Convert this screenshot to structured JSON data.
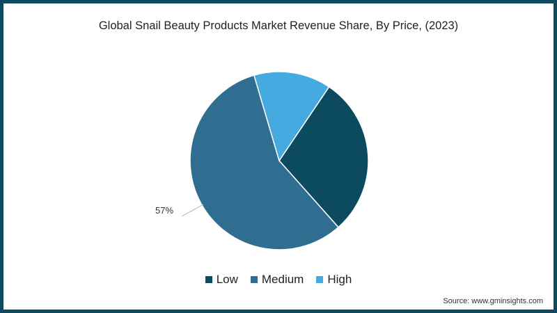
{
  "chart_data": {
    "type": "pie",
    "title": "Global Snail Beauty Products Market Revenue Share, By Price, (2023)",
    "categories": [
      "Low",
      "Medium",
      "High"
    ],
    "values": [
      29,
      57,
      14
    ],
    "colors": [
      "#0c4a60",
      "#2f6e91",
      "#45aadf"
    ],
    "data_labels": [
      {
        "category": "Medium",
        "text": "57%"
      }
    ],
    "legend_position": "bottom",
    "start_angle_deg": 34,
    "direction": "clockwise"
  },
  "header": {
    "title": "Global Snail Beauty Products Market Revenue Share, By Price, (2023)"
  },
  "legend": {
    "items": [
      {
        "label": "Low",
        "color": "#0c4a60"
      },
      {
        "label": "Medium",
        "color": "#2f6e91"
      },
      {
        "label": "High",
        "color": "#45aadf"
      }
    ]
  },
  "labels": {
    "medium_pct": "57%"
  },
  "footer": {
    "source": "Source: www.gminsights.com"
  },
  "theme": {
    "border_color": "#0d4a5e",
    "leader_line_color": "#bbbbbb"
  }
}
